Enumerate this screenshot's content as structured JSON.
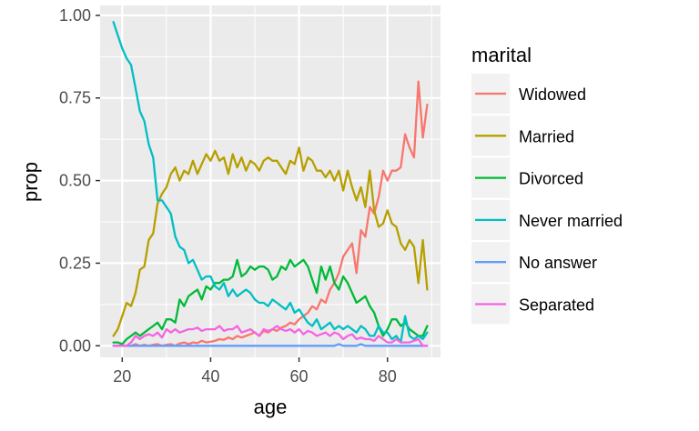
{
  "chart_data": {
    "type": "line",
    "xlabel": "age",
    "ylabel": "prop",
    "xlim": [
      15,
      92
    ],
    "ylim": [
      -0.035,
      1.03
    ],
    "x_ticks": [
      20,
      40,
      60,
      80
    ],
    "y_ticks": [
      0.0,
      0.25,
      0.5,
      0.75,
      1.0
    ],
    "y_tick_labels": [
      "0.00",
      "0.25",
      "0.50",
      "0.75",
      "1.00"
    ],
    "grid": true,
    "panel_background": "#ebebeb",
    "legend": {
      "title": "marital",
      "position": "right"
    },
    "x": [
      18,
      19,
      20,
      21,
      22,
      23,
      24,
      25,
      26,
      27,
      28,
      29,
      30,
      31,
      32,
      33,
      34,
      35,
      36,
      37,
      38,
      39,
      40,
      41,
      42,
      43,
      44,
      45,
      46,
      47,
      48,
      49,
      50,
      51,
      52,
      53,
      54,
      55,
      56,
      57,
      58,
      59,
      60,
      61,
      62,
      63,
      64,
      65,
      66,
      67,
      68,
      69,
      70,
      71,
      72,
      73,
      74,
      75,
      76,
      77,
      78,
      79,
      80,
      81,
      82,
      83,
      84,
      85,
      86,
      87,
      88,
      89
    ],
    "series": [
      {
        "name": "Widowed",
        "color": "#F8766D",
        "values": [
          0.0,
          0.0,
          0.0,
          0.0,
          0.0,
          0.005,
          0.0,
          0.003,
          0.0,
          0.003,
          0.005,
          0.0,
          0.003,
          0.005,
          0.0,
          0.007,
          0.01,
          0.005,
          0.01,
          0.008,
          0.015,
          0.01,
          0.012,
          0.015,
          0.02,
          0.018,
          0.025,
          0.02,
          0.03,
          0.025,
          0.03,
          0.035,
          0.04,
          0.03,
          0.045,
          0.04,
          0.05,
          0.045,
          0.055,
          0.06,
          0.07,
          0.065,
          0.08,
          0.09,
          0.1,
          0.12,
          0.11,
          0.14,
          0.13,
          0.17,
          0.19,
          0.22,
          0.27,
          0.29,
          0.31,
          0.22,
          0.35,
          0.33,
          0.42,
          0.4,
          0.45,
          0.53,
          0.5,
          0.53,
          0.53,
          0.54,
          0.64,
          0.6,
          0.57,
          0.8,
          0.63,
          0.73
        ]
      },
      {
        "name": "Married",
        "color": "#B79F00",
        "values": [
          0.03,
          0.05,
          0.09,
          0.13,
          0.12,
          0.16,
          0.23,
          0.24,
          0.32,
          0.34,
          0.43,
          0.46,
          0.48,
          0.52,
          0.54,
          0.5,
          0.53,
          0.52,
          0.56,
          0.52,
          0.55,
          0.58,
          0.56,
          0.59,
          0.56,
          0.57,
          0.52,
          0.58,
          0.54,
          0.57,
          0.53,
          0.56,
          0.55,
          0.53,
          0.56,
          0.57,
          0.56,
          0.56,
          0.54,
          0.52,
          0.56,
          0.55,
          0.6,
          0.53,
          0.57,
          0.56,
          0.53,
          0.53,
          0.51,
          0.53,
          0.5,
          0.53,
          0.47,
          0.53,
          0.48,
          0.44,
          0.48,
          0.42,
          0.53,
          0.41,
          0.36,
          0.37,
          0.41,
          0.37,
          0.36,
          0.31,
          0.29,
          0.32,
          0.3,
          0.19,
          0.32,
          0.17
        ]
      },
      {
        "name": "Divorced",
        "color": "#00BA38",
        "values": [
          0.01,
          0.01,
          0.005,
          0.02,
          0.03,
          0.04,
          0.03,
          0.04,
          0.05,
          0.06,
          0.07,
          0.05,
          0.08,
          0.08,
          0.07,
          0.14,
          0.12,
          0.15,
          0.16,
          0.17,
          0.14,
          0.18,
          0.17,
          0.19,
          0.19,
          0.2,
          0.2,
          0.21,
          0.26,
          0.21,
          0.22,
          0.24,
          0.23,
          0.24,
          0.24,
          0.23,
          0.2,
          0.21,
          0.24,
          0.23,
          0.26,
          0.24,
          0.25,
          0.26,
          0.24,
          0.2,
          0.16,
          0.24,
          0.2,
          0.24,
          0.19,
          0.17,
          0.21,
          0.19,
          0.16,
          0.13,
          0.14,
          0.15,
          0.12,
          0.1,
          0.06,
          0.03,
          0.05,
          0.08,
          0.08,
          0.06,
          0.07,
          0.05,
          0.04,
          0.03,
          0.03,
          0.06
        ]
      },
      {
        "name": "Never married",
        "color": "#00BFC4",
        "values": [
          0.98,
          0.94,
          0.9,
          0.87,
          0.85,
          0.78,
          0.71,
          0.68,
          0.61,
          0.57,
          0.44,
          0.44,
          0.42,
          0.4,
          0.33,
          0.3,
          0.29,
          0.25,
          0.26,
          0.23,
          0.2,
          0.21,
          0.21,
          0.18,
          0.17,
          0.19,
          0.15,
          0.17,
          0.15,
          0.16,
          0.17,
          0.16,
          0.14,
          0.13,
          0.13,
          0.12,
          0.14,
          0.13,
          0.12,
          0.11,
          0.13,
          0.1,
          0.11,
          0.09,
          0.07,
          0.06,
          0.08,
          0.05,
          0.06,
          0.07,
          0.05,
          0.06,
          0.05,
          0.06,
          0.05,
          0.04,
          0.06,
          0.05,
          0.03,
          0.03,
          0.06,
          0.04,
          0.04,
          0.02,
          0.03,
          0.01,
          0.09,
          0.03,
          0.02,
          0.03,
          0.02,
          0.04
        ]
      },
      {
        "name": "No answer",
        "color": "#619CFF",
        "values": [
          0.0,
          0.0,
          0.0,
          0.0,
          0.0,
          0.0,
          0.0,
          0.0,
          0.0,
          0.0,
          0.0,
          0.0,
          0.0,
          0.0,
          0.0,
          0.0,
          0.0,
          0.0,
          0.0,
          0.0,
          0.0,
          0.0,
          0.0,
          0.0,
          0.0,
          0.0,
          0.0,
          0.0,
          0.0,
          0.0,
          0.0,
          0.0,
          0.0,
          0.0,
          0.0,
          0.0,
          0.0,
          0.0,
          0.0,
          0.0,
          0.0,
          0.0,
          0.0,
          0.0,
          0.0,
          0.0,
          0.0,
          0.0,
          0.0,
          0.0,
          0.0,
          0.005,
          0.0,
          0.0,
          0.0,
          0.0,
          0.005,
          0.0,
          0.0,
          0.0,
          0.0,
          0.0,
          0.0,
          0.0,
          0.0,
          0.0,
          0.0,
          0.0,
          0.0,
          0.0,
          0.0,
          0.0
        ]
      },
      {
        "name": "Separated",
        "color": "#F564E3",
        "values": [
          0.0,
          0.0,
          0.0,
          0.0,
          0.01,
          0.03,
          0.02,
          0.03,
          0.035,
          0.03,
          0.04,
          0.025,
          0.05,
          0.04,
          0.05,
          0.04,
          0.045,
          0.05,
          0.05,
          0.055,
          0.045,
          0.05,
          0.05,
          0.05,
          0.06,
          0.045,
          0.05,
          0.05,
          0.06,
          0.04,
          0.045,
          0.05,
          0.04,
          0.03,
          0.05,
          0.045,
          0.05,
          0.06,
          0.05,
          0.045,
          0.05,
          0.04,
          0.05,
          0.035,
          0.045,
          0.04,
          0.03,
          0.035,
          0.04,
          0.03,
          0.04,
          0.035,
          0.02,
          0.03,
          0.035,
          0.02,
          0.025,
          0.02,
          0.02,
          0.015,
          0.03,
          0.02,
          0.01,
          0.01,
          0.02,
          0.01,
          0.01,
          0.01,
          0.015,
          0.02,
          0.0,
          0.0
        ]
      }
    ]
  }
}
